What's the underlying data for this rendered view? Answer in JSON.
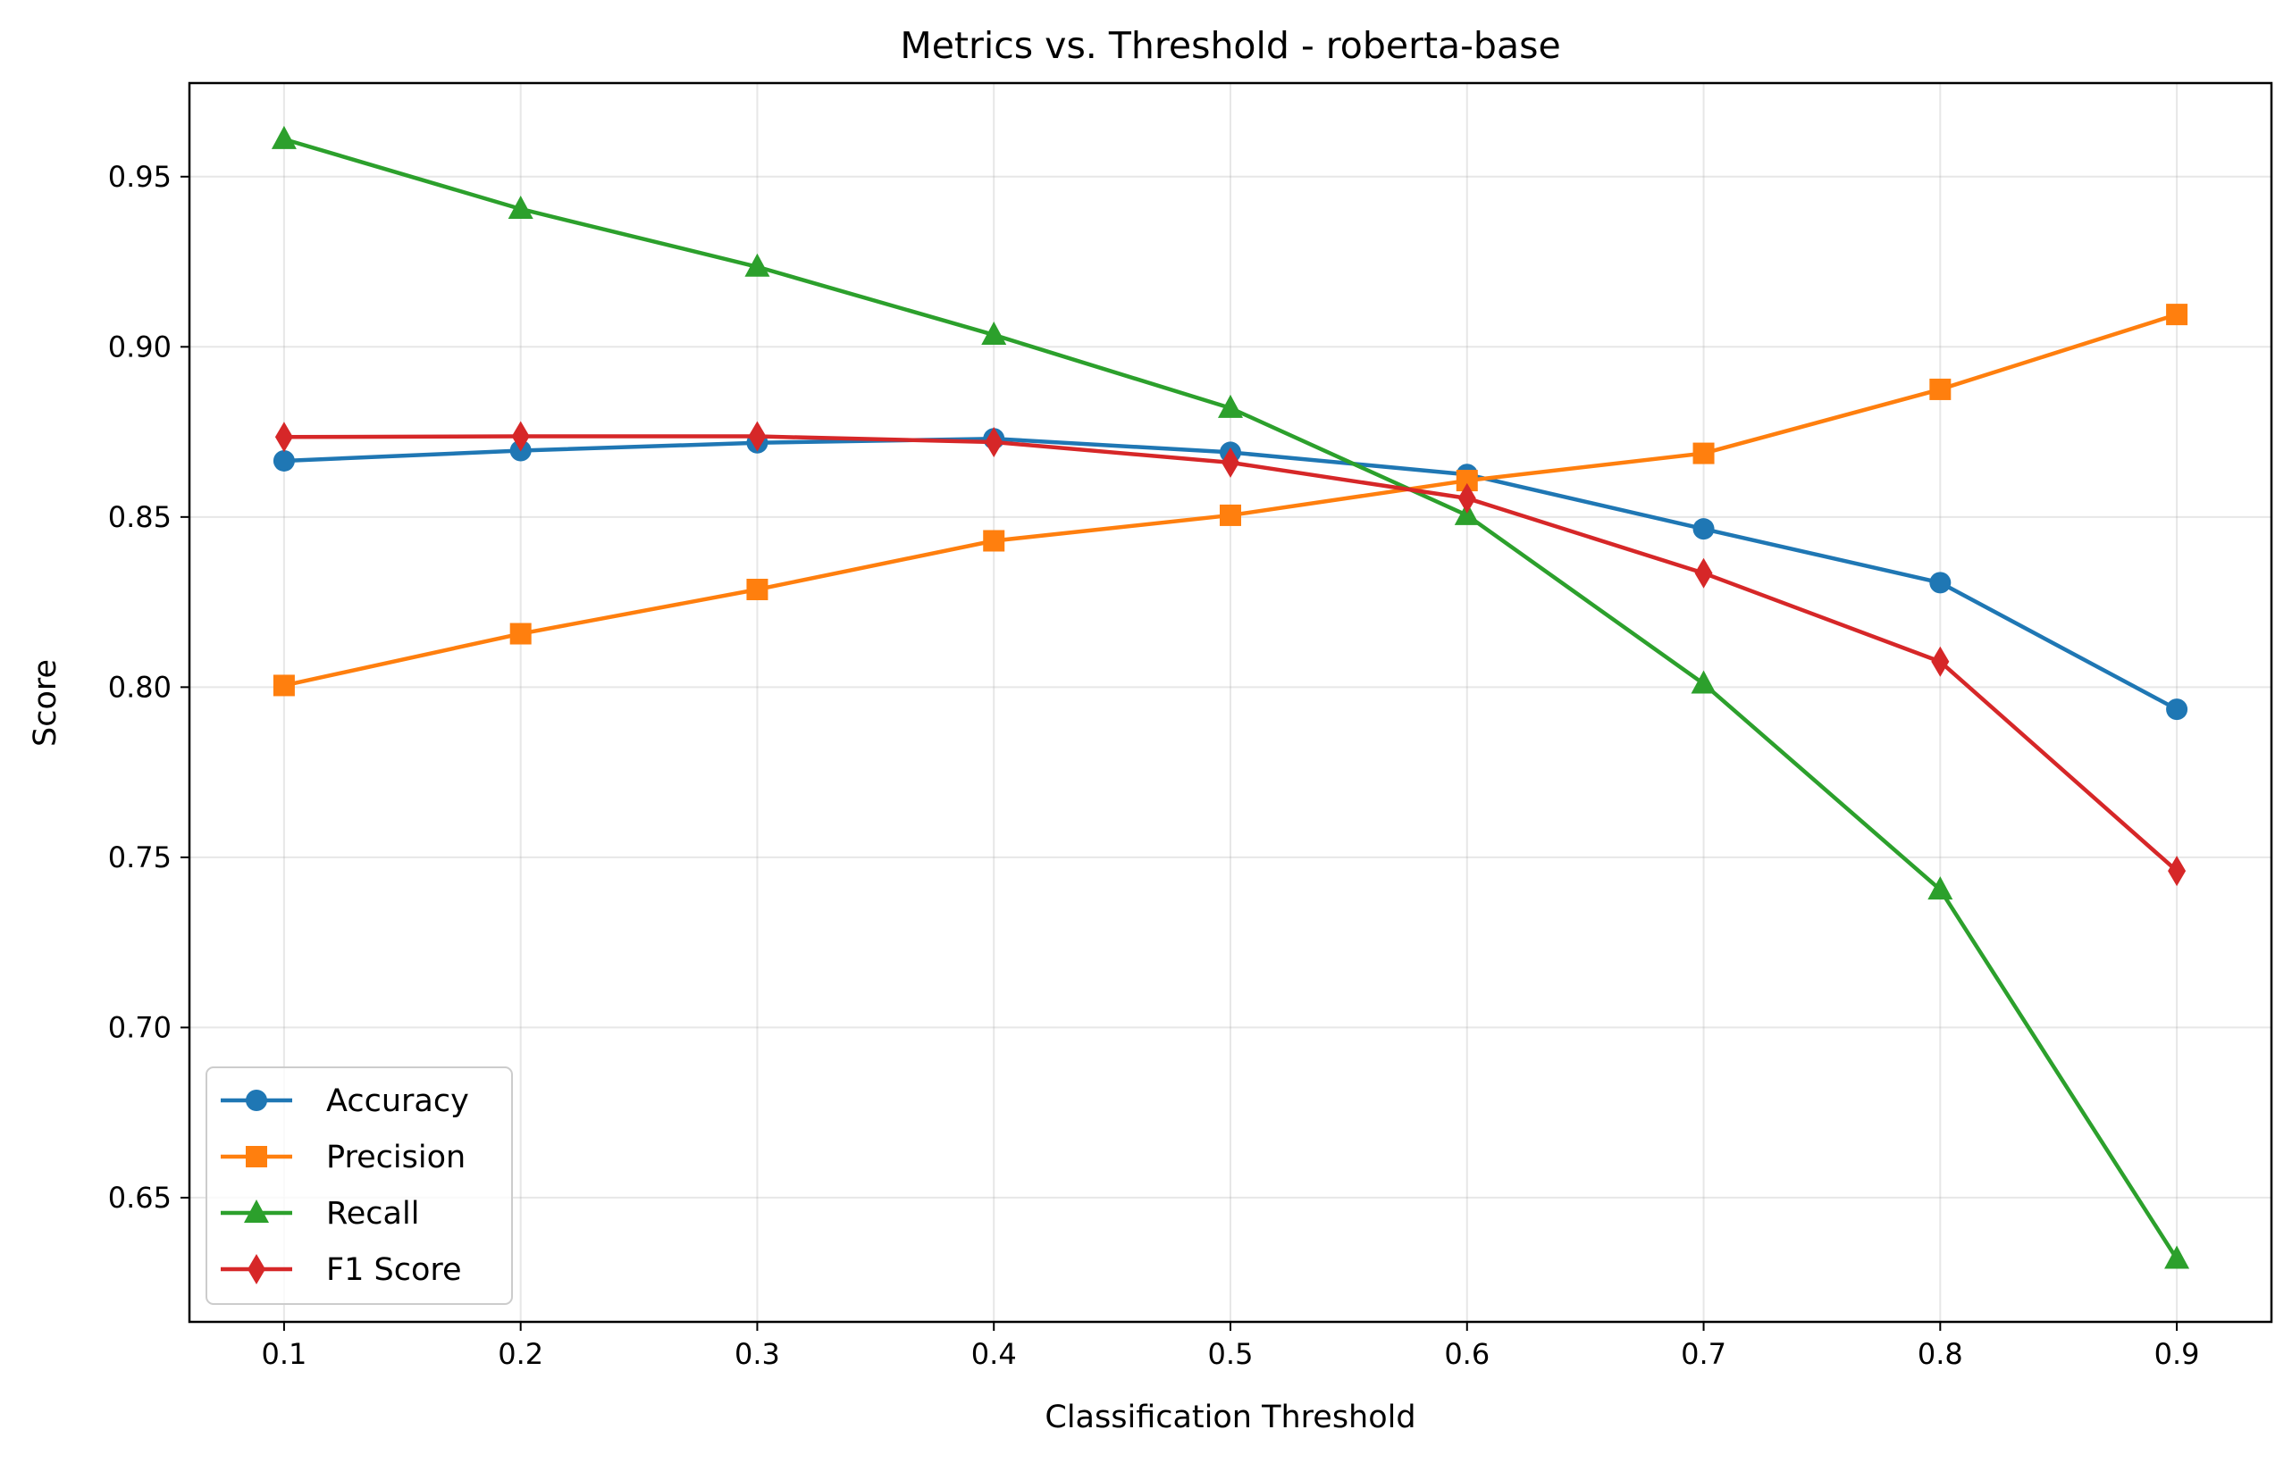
{
  "chart_data": {
    "type": "line",
    "title": "Metrics vs. Threshold - roberta-base",
    "xlabel": "Classification Threshold",
    "ylabel": "Score",
    "x": [
      0.1,
      0.2,
      0.3,
      0.4,
      0.5,
      0.6,
      0.7,
      0.8,
      0.9
    ],
    "x_tick_labels": [
      "0.1",
      "0.2",
      "0.3",
      "0.4",
      "0.5",
      "0.6",
      "0.7",
      "0.8",
      "0.9"
    ],
    "y_ticks": [
      0.65,
      0.7,
      0.75,
      0.8,
      0.85,
      0.9,
      0.95
    ],
    "y_tick_labels": [
      "0.65",
      "0.70",
      "0.75",
      "0.80",
      "0.85",
      "0.90",
      "0.95"
    ],
    "xlim": [
      0.06,
      0.94
    ],
    "ylim": [
      0.6135,
      0.9775
    ],
    "grid": true,
    "legend_position": "lower-left",
    "series": [
      {
        "name": "Accuracy",
        "color": "#1f77b4",
        "marker": "circle",
        "values": [
          0.8665,
          0.8695,
          0.8718,
          0.873,
          0.869,
          0.8625,
          0.8465,
          0.8307,
          0.7935
        ]
      },
      {
        "name": "Precision",
        "color": "#ff7f0e",
        "marker": "square",
        "values": [
          0.8005,
          0.8157,
          0.8287,
          0.843,
          0.8505,
          0.8607,
          0.8687,
          0.8875,
          0.9095
        ]
      },
      {
        "name": "Recall",
        "color": "#2ca02c",
        "marker": "triangle",
        "values": [
          0.961,
          0.9405,
          0.9235,
          0.9035,
          0.882,
          0.8505,
          0.801,
          0.7405,
          0.632
        ]
      },
      {
        "name": "F1 Score",
        "color": "#d62728",
        "marker": "diamond",
        "values": [
          0.8735,
          0.8737,
          0.8737,
          0.872,
          0.866,
          0.8555,
          0.8335,
          0.8075,
          0.746
        ]
      }
    ]
  }
}
